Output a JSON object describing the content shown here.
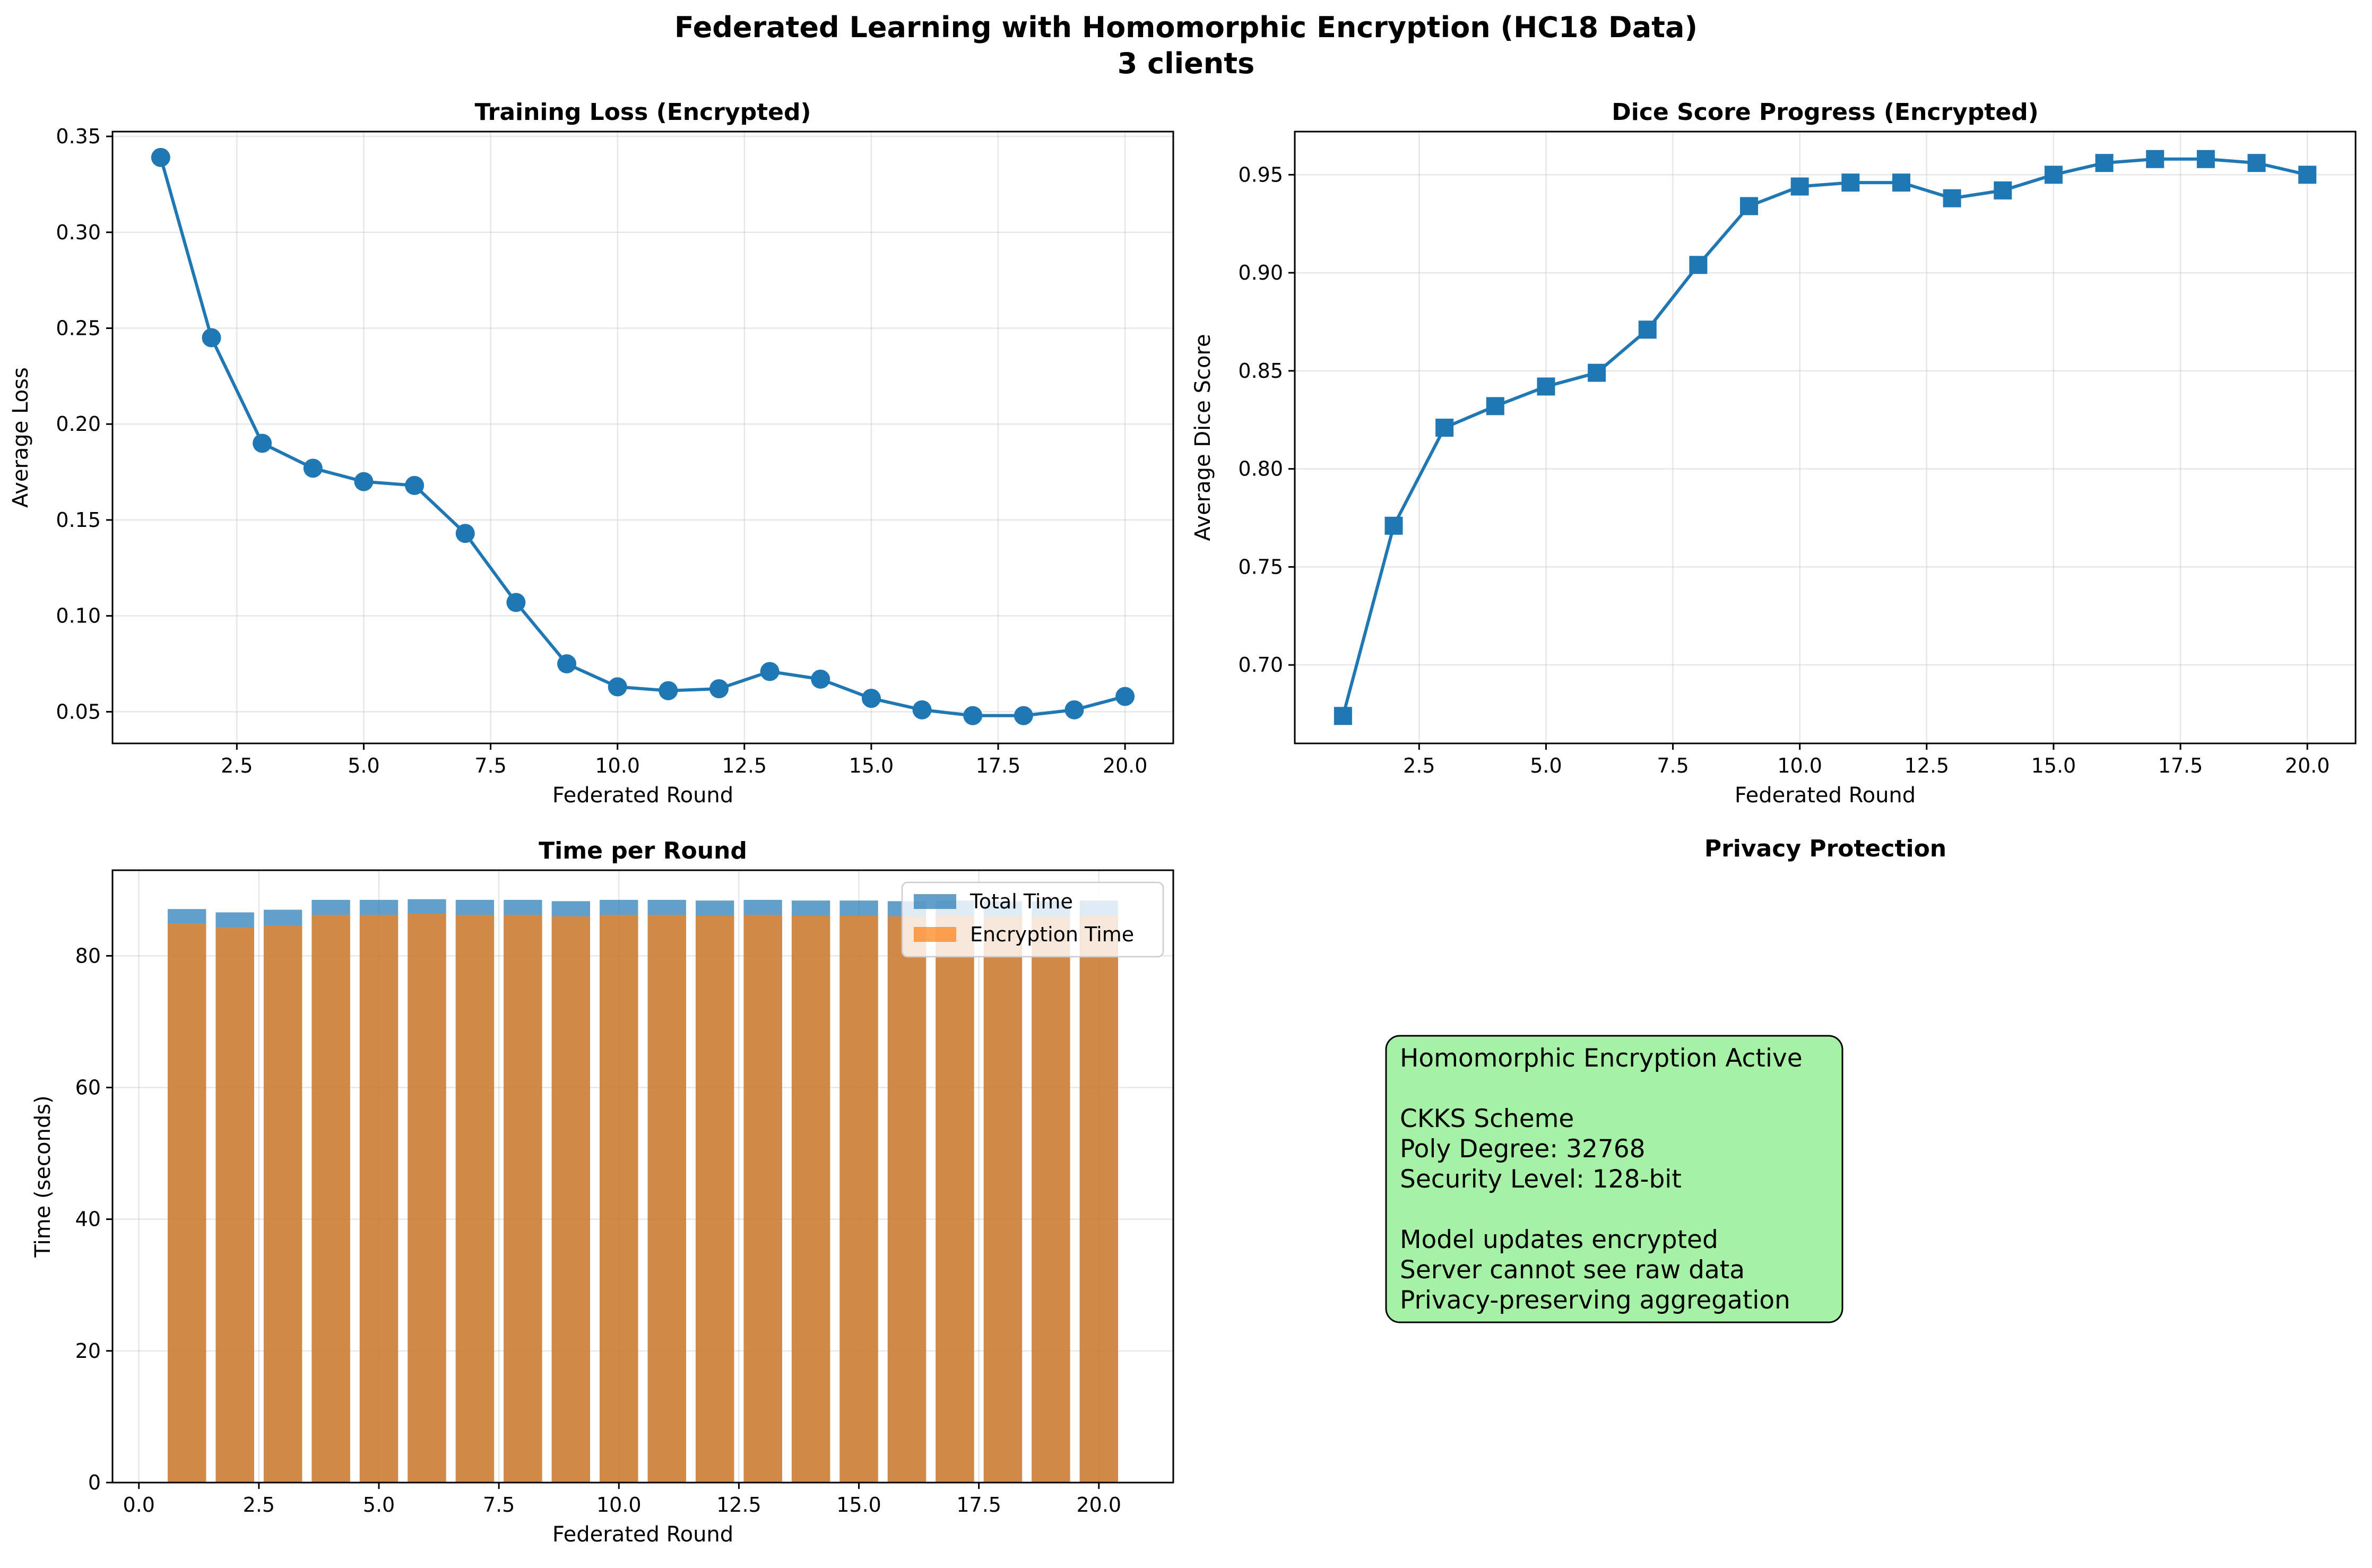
{
  "figure": {
    "title_line1": "Federated Learning with Homomorphic Encryption (HC18 Data)",
    "title_line2": "3 clients"
  },
  "chart_data": [
    {
      "type": "line",
      "title": "Training Loss (Encrypted)",
      "xlabel": "Federated Round",
      "ylabel": "Average Loss",
      "x": [
        1,
        2,
        3,
        4,
        5,
        6,
        7,
        8,
        9,
        10,
        11,
        12,
        13,
        14,
        15,
        16,
        17,
        18,
        19,
        20
      ],
      "series": [
        {
          "values": [
            0.339,
            0.245,
            0.19,
            0.177,
            0.17,
            0.168,
            0.143,
            0.107,
            0.075,
            0.063,
            0.061,
            0.062,
            0.071,
            0.067,
            0.057,
            0.051,
            0.048,
            0.048,
            0.051,
            0.058
          ],
          "color": "#1f77b4",
          "marker": "circle"
        }
      ],
      "xlim": [
        0.05,
        20.95
      ],
      "ylim": [
        0.0335,
        0.3525
      ],
      "xticks": [
        2.5,
        5.0,
        7.5,
        10.0,
        12.5,
        15.0,
        17.5,
        20.0
      ],
      "xtick_labels": [
        "2.5",
        "5.0",
        "7.5",
        "10.0",
        "12.5",
        "15.0",
        "17.5",
        "20.0"
      ],
      "yticks": [
        0.05,
        0.1,
        0.15,
        0.2,
        0.25,
        0.3,
        0.35
      ],
      "ytick_labels": [
        "0.05",
        "0.10",
        "0.15",
        "0.20",
        "0.25",
        "0.30",
        "0.35"
      ],
      "grid": true
    },
    {
      "type": "line",
      "title": "Dice Score Progress (Encrypted)",
      "xlabel": "Federated Round",
      "ylabel": "Average Dice Score",
      "x": [
        1,
        2,
        3,
        4,
        5,
        6,
        7,
        8,
        9,
        10,
        11,
        12,
        13,
        14,
        15,
        16,
        17,
        18,
        19,
        20
      ],
      "series": [
        {
          "values": [
            0.674,
            0.771,
            0.821,
            0.832,
            0.842,
            0.849,
            0.871,
            0.904,
            0.934,
            0.944,
            0.946,
            0.946,
            0.938,
            0.942,
            0.95,
            0.956,
            0.958,
            0.958,
            0.956,
            0.95
          ],
          "color": "#1f77b4",
          "marker": "square"
        }
      ],
      "xlim": [
        0.05,
        20.95
      ],
      "ylim": [
        0.66,
        0.972
      ],
      "xticks": [
        2.5,
        5.0,
        7.5,
        10.0,
        12.5,
        15.0,
        17.5,
        20.0
      ],
      "xtick_labels": [
        "2.5",
        "5.0",
        "7.5",
        "10.0",
        "12.5",
        "15.0",
        "17.5",
        "20.0"
      ],
      "yticks": [
        0.7,
        0.75,
        0.8,
        0.85,
        0.9,
        0.95
      ],
      "ytick_labels": [
        "0.70",
        "0.75",
        "0.80",
        "0.85",
        "0.90",
        "0.95"
      ],
      "grid": true
    },
    {
      "type": "bar",
      "title": "Time per Round",
      "xlabel": "Federated Round",
      "ylabel": "Time (seconds)",
      "x": [
        1,
        2,
        3,
        4,
        5,
        6,
        7,
        8,
        9,
        10,
        11,
        12,
        13,
        14,
        15,
        16,
        17,
        18,
        19,
        20
      ],
      "series": [
        {
          "name": "Total Time",
          "values": [
            87.1,
            86.6,
            87.0,
            88.5,
            88.5,
            88.6,
            88.5,
            88.5,
            88.3,
            88.5,
            88.5,
            88.4,
            88.5,
            88.4,
            88.4,
            88.3,
            88.4,
            88.3,
            88.3,
            88.4
          ],
          "color": "#1f77b4",
          "alpha": 0.7
        },
        {
          "name": "Encryption Time",
          "values": [
            84.9,
            84.3,
            84.6,
            86.2,
            86.2,
            86.4,
            86.2,
            86.2,
            86.0,
            86.2,
            86.2,
            86.1,
            86.2,
            86.1,
            86.1,
            86.0,
            86.1,
            86.0,
            86.0,
            86.1
          ],
          "color": "#ff7f0e",
          "alpha": 0.7
        }
      ],
      "bar_width": 0.8,
      "xlim": [
        -0.55,
        21.55
      ],
      "ylim": [
        0,
        93
      ],
      "xticks": [
        0.0,
        2.5,
        5.0,
        7.5,
        10.0,
        12.5,
        15.0,
        17.5,
        20.0
      ],
      "xtick_labels": [
        "0.0",
        "2.5",
        "5.0",
        "7.5",
        "10.0",
        "12.5",
        "15.0",
        "17.5",
        "20.0"
      ],
      "yticks": [
        0,
        20,
        40,
        60,
        80
      ],
      "ytick_labels": [
        "0",
        "20",
        "40",
        "60",
        "80"
      ],
      "grid": true,
      "legend": "top-right"
    }
  ],
  "privacy_panel": {
    "title": "Privacy Protection",
    "lines": [
      "Homomorphic Encryption Active",
      "",
      "CKKS Scheme",
      "Poly Degree: 32768",
      "Security Level: 128-bit",
      "",
      "Model updates encrypted",
      "Server cannot see raw data",
      "Privacy-preserving aggregation"
    ],
    "box_color": "#90ee90"
  }
}
